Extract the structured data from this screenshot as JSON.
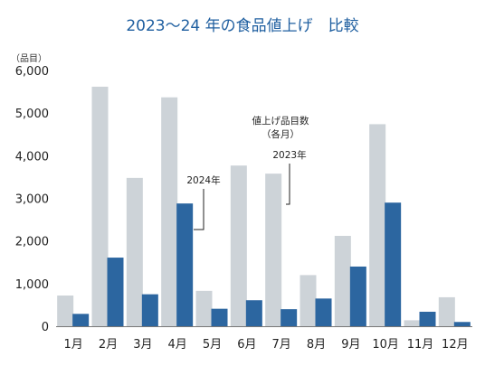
{
  "chart_data": {
    "type": "bar",
    "title": "2023～24 年の食品値上げ　比較",
    "ylabel": "（品目）",
    "xlabel": "",
    "categories": [
      "1月",
      "2月",
      "3月",
      "4月",
      "5月",
      "6月",
      "7月",
      "8月",
      "9月",
      "10月",
      "11月",
      "12月"
    ],
    "series": [
      {
        "name": "2023年",
        "color": "#cdd3d8",
        "values": [
          720,
          5620,
          3480,
          5370,
          830,
          3770,
          3580,
          1200,
          2120,
          4740,
          140,
          680
        ]
      },
      {
        "name": "2024年",
        "color": "#2c66a0",
        "values": [
          290,
          1610,
          750,
          2880,
          410,
          610,
          400,
          650,
          1400,
          2900,
          340,
          100
        ]
      }
    ],
    "ylim": [
      0,
      6000
    ],
    "yticks": [
      0,
      1000,
      2000,
      3000,
      4000,
      5000,
      6000
    ],
    "ytick_labels": [
      "0",
      "1,000",
      "2,000",
      "3,000",
      "4,000",
      "5,000",
      "6,000"
    ],
    "grid": false,
    "legend": "none",
    "annotations": {
      "label_2024": "2024年",
      "label_2023": "2023年",
      "note_line1": "値上げ品目数",
      "note_line2": "（各月）"
    }
  }
}
